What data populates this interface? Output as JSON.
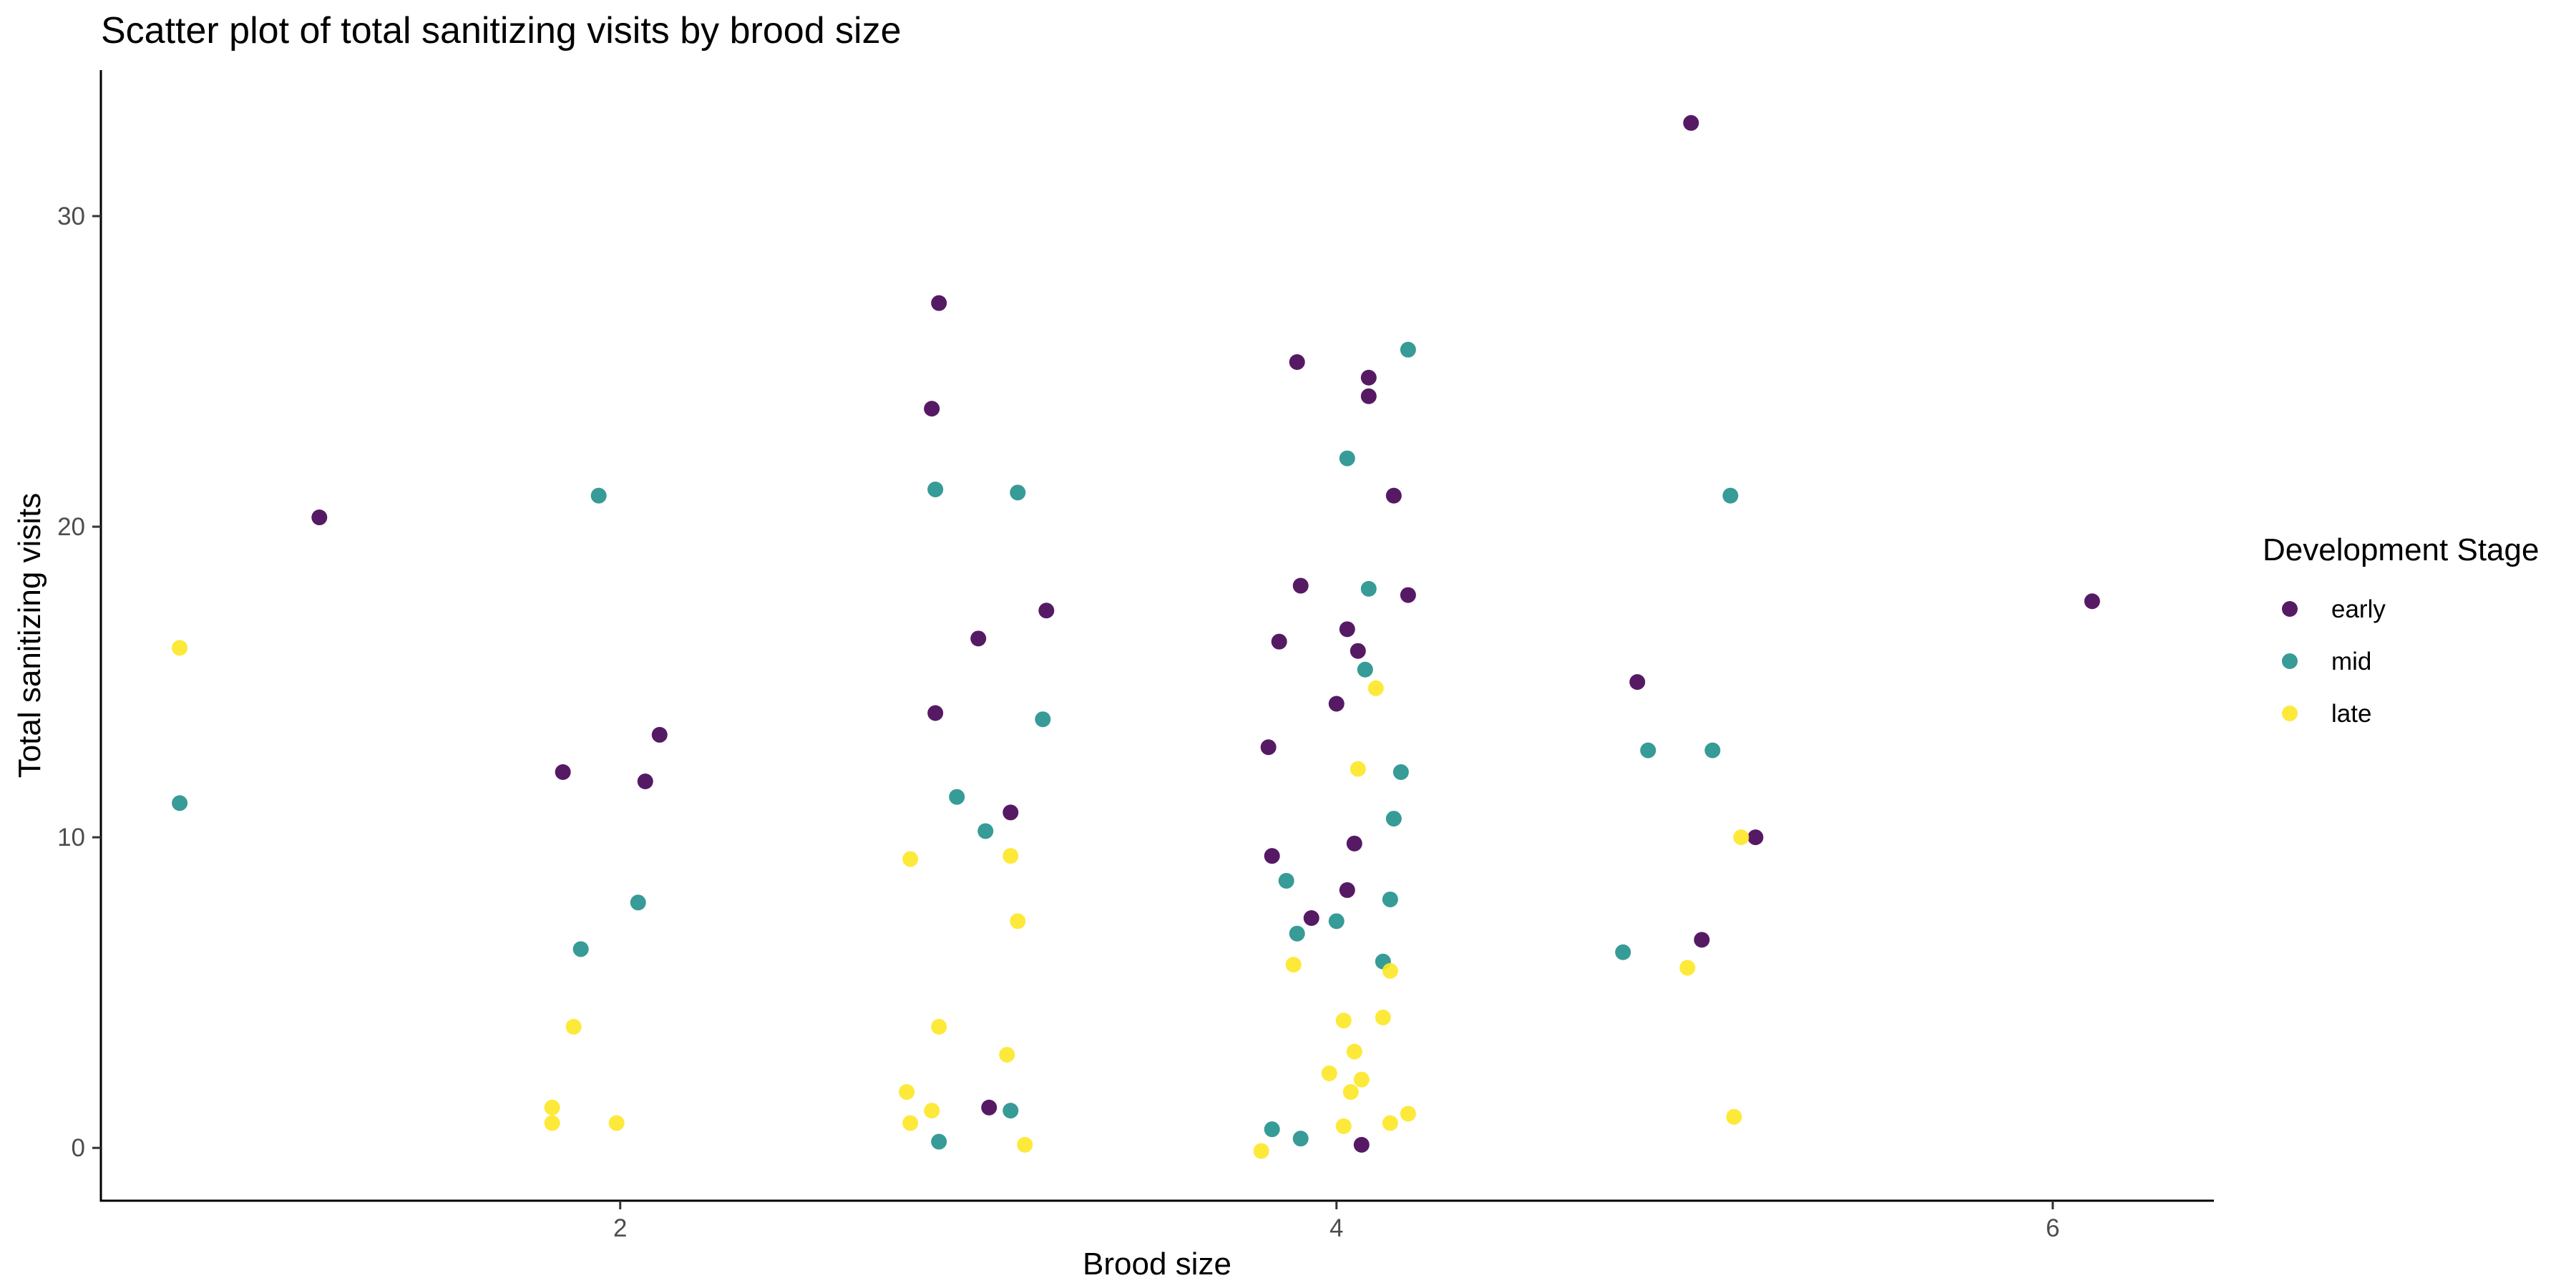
{
  "chart_data": {
    "type": "scatter",
    "title": "Scatter plot of total sanitizing visits by brood size",
    "xlabel": "Brood size",
    "ylabel": "Total sanitizing visits",
    "xlim": [
      0.55,
      6.45
    ],
    "ylim": [
      -1.7,
      34.7
    ],
    "x_ticks": [
      2,
      4,
      6
    ],
    "y_ticks": [
      0,
      10,
      20,
      30
    ],
    "grid": false,
    "legend": {
      "title": "Development Stage",
      "position": "right"
    },
    "series": [
      {
        "name": "early",
        "color": "#440154",
        "points": [
          [
            1.16,
            20.3
          ],
          [
            1.84,
            12.1
          ],
          [
            2.07,
            11.8
          ],
          [
            2.11,
            13.3
          ],
          [
            2.87,
            23.8
          ],
          [
            2.88,
            14.0
          ],
          [
            2.89,
            27.2
          ],
          [
            3.0,
            16.4
          ],
          [
            3.03,
            1.3
          ],
          [
            3.09,
            10.8
          ],
          [
            3.19,
            17.3
          ],
          [
            3.81,
            12.9
          ],
          [
            3.82,
            9.4
          ],
          [
            3.84,
            16.3
          ],
          [
            3.89,
            25.3
          ],
          [
            3.9,
            18.1
          ],
          [
            3.93,
            7.4
          ],
          [
            4.0,
            14.3
          ],
          [
            4.03,
            8.3
          ],
          [
            4.03,
            16.7
          ],
          [
            4.05,
            9.8
          ],
          [
            4.06,
            16.0
          ],
          [
            4.07,
            0.1
          ],
          [
            4.09,
            24.2
          ],
          [
            4.09,
            24.8
          ],
          [
            4.16,
            21.0
          ],
          [
            4.2,
            17.8
          ],
          [
            4.84,
            15.0
          ],
          [
            4.99,
            33.0
          ],
          [
            5.02,
            6.7
          ],
          [
            5.17,
            10.0
          ],
          [
            6.11,
            17.6
          ]
        ]
      },
      {
        "name": "mid",
        "color": "#21908C",
        "points": [
          [
            0.77,
            11.1
          ],
          [
            1.94,
            21.0
          ],
          [
            1.89,
            6.4
          ],
          [
            2.05,
            7.9
          ],
          [
            2.88,
            21.2
          ],
          [
            2.89,
            0.2
          ],
          [
            2.94,
            11.3
          ],
          [
            3.02,
            10.2
          ],
          [
            3.09,
            1.2
          ],
          [
            3.11,
            21.1
          ],
          [
            3.18,
            13.8
          ],
          [
            3.82,
            0.6
          ],
          [
            3.86,
            8.6
          ],
          [
            3.89,
            6.9
          ],
          [
            3.9,
            0.3
          ],
          [
            4.0,
            7.3
          ],
          [
            4.03,
            22.2
          ],
          [
            4.08,
            15.4
          ],
          [
            4.09,
            18.0
          ],
          [
            4.13,
            6.0
          ],
          [
            4.15,
            8.0
          ],
          [
            4.16,
            10.6
          ],
          [
            4.18,
            12.1
          ],
          [
            4.2,
            25.7
          ],
          [
            4.8,
            6.3
          ],
          [
            4.87,
            12.8
          ],
          [
            5.05,
            12.8
          ],
          [
            5.1,
            21.0
          ]
        ]
      },
      {
        "name": "late",
        "color": "#FDE725",
        "points": [
          [
            0.77,
            16.1
          ],
          [
            1.81,
            1.3
          ],
          [
            1.81,
            0.8
          ],
          [
            1.87,
            3.9
          ],
          [
            1.99,
            0.8
          ],
          [
            2.8,
            1.8
          ],
          [
            2.81,
            0.8
          ],
          [
            2.81,
            9.3
          ],
          [
            2.87,
            1.2
          ],
          [
            2.89,
            3.9
          ],
          [
            3.08,
            3.0
          ],
          [
            3.09,
            9.4
          ],
          [
            3.11,
            7.3
          ],
          [
            3.13,
            0.1
          ],
          [
            3.79,
            -0.1
          ],
          [
            3.88,
            5.9
          ],
          [
            3.98,
            2.4
          ],
          [
            4.02,
            4.1
          ],
          [
            4.02,
            0.7
          ],
          [
            4.04,
            1.8
          ],
          [
            4.05,
            3.1
          ],
          [
            4.06,
            12.2
          ],
          [
            4.07,
            2.2
          ],
          [
            4.11,
            14.8
          ],
          [
            4.13,
            4.2
          ],
          [
            4.15,
            0.8
          ],
          [
            4.15,
            5.7
          ],
          [
            4.2,
            1.1
          ],
          [
            4.98,
            5.8
          ],
          [
            5.11,
            1.0
          ],
          [
            5.13,
            10.0
          ]
        ]
      }
    ]
  }
}
